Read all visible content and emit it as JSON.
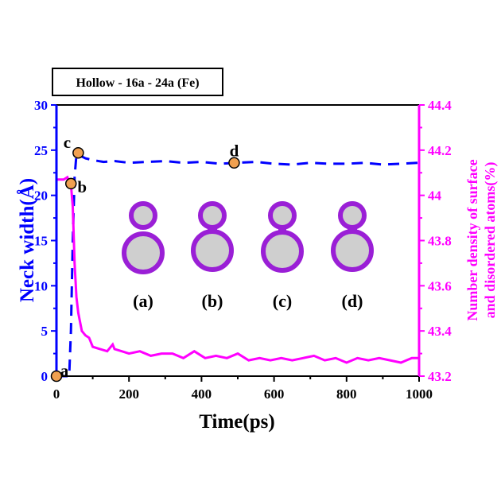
{
  "chart_data": {
    "type": "line",
    "title": "Hollow - 16a - 24a (Fe)",
    "xlabel": "Time(ps)",
    "ylabel": "Neck width(Å)",
    "ylabel_right": [
      "Number density of surface",
      "and disordered atoms(%)"
    ],
    "xlim": [
      0,
      1000
    ],
    "ylim": [
      0,
      30
    ],
    "ylim_right": [
      43.2,
      44.4
    ],
    "xticks": [
      "0",
      "200",
      "400",
      "600",
      "800",
      "1000"
    ],
    "yticks": [
      "0",
      "5",
      "10",
      "15",
      "20",
      "25",
      "30"
    ],
    "yticks_right": [
      "43.2",
      "43.4",
      "43.6",
      "43.8",
      "44",
      "44.2",
      "44.4"
    ],
    "grid": false,
    "series": [
      {
        "name": "Neck width",
        "axis": "left",
        "color": "#0000ff",
        "style": "dashed",
        "x": [
          0,
          35,
          40,
          45,
          50,
          55,
          60,
          70,
          80,
          100,
          130,
          160,
          200,
          250,
          300,
          350,
          400,
          450,
          500,
          550,
          600,
          650,
          700,
          750,
          800,
          850,
          900,
          950,
          1000
        ],
        "y": [
          0,
          0,
          5,
          15,
          22,
          24.5,
          24.6,
          24.3,
          24.1,
          23.9,
          23.7,
          23.8,
          23.6,
          23.7,
          23.8,
          23.6,
          23.7,
          23.5,
          23.6,
          23.7,
          23.5,
          23.4,
          23.6,
          23.5,
          23.5,
          23.6,
          23.4,
          23.5,
          23.6
        ]
      },
      {
        "name": "Number density of surface and disordered atoms",
        "axis": "right",
        "color": "#ff00ff",
        "style": "solid",
        "x": [
          0,
          20,
          30,
          35,
          40,
          45,
          50,
          55,
          60,
          70,
          80,
          90,
          100,
          120,
          140,
          155,
          160,
          180,
          200,
          230,
          260,
          290,
          320,
          350,
          380,
          410,
          440,
          470,
          500,
          530,
          560,
          590,
          620,
          650,
          680,
          710,
          740,
          770,
          800,
          830,
          860,
          890,
          920,
          950,
          980,
          1000
        ],
        "y": [
          44.07,
          44.07,
          44.08,
          44.06,
          44.05,
          43.95,
          43.7,
          43.55,
          43.48,
          43.4,
          43.38,
          43.37,
          43.33,
          43.32,
          43.31,
          43.34,
          43.32,
          43.31,
          43.3,
          43.31,
          43.29,
          43.3,
          43.3,
          43.28,
          43.31,
          43.28,
          43.29,
          43.28,
          43.3,
          43.27,
          43.28,
          43.27,
          43.28,
          43.27,
          43.28,
          43.29,
          43.27,
          43.28,
          43.26,
          43.28,
          43.27,
          43.28,
          43.27,
          43.26,
          43.28,
          43.28
        ]
      }
    ],
    "markers": [
      {
        "label": "a",
        "x": 0,
        "y": 0
      },
      {
        "label": "b",
        "x": 40,
        "y": 21.3
      },
      {
        "label": "c",
        "x": 60,
        "y": 24.7
      },
      {
        "label": "d",
        "x": 490,
        "y": 23.6
      }
    ],
    "marker_color": "#f0a050",
    "insets": [
      "(a)",
      "(b)",
      "(c)",
      "(d)"
    ]
  }
}
